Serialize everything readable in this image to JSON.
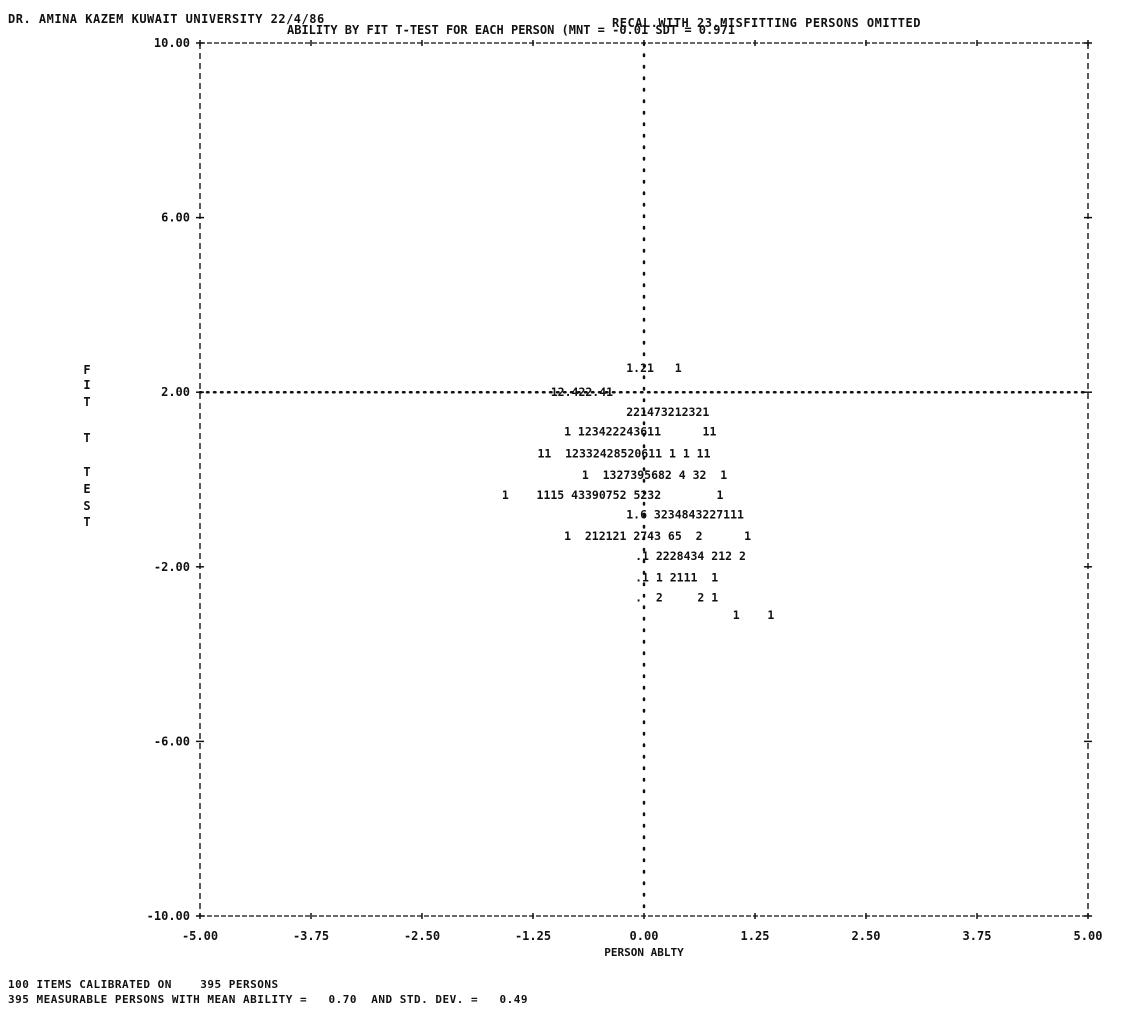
{
  "header": {
    "left": "DR. AMINA KAZEM KUWAIT UNIVERSITY 22/4/86",
    "right": "RECAL.WITH 23.MISFITTING PERSONS OMITTED"
  },
  "footer": {
    "line1": "100 ITEMS CALIBRATED ON    395 PERSONS",
    "line2": "395 MEASURABLE PERSONS WITH MEAN ABILITY =   0.70  AND STD. DEV. =   0.49"
  },
  "chart_data": {
    "type": "scatter",
    "title": "ABILITY BY FIT T-TEST FOR EACH PERSON (MNT = -0.01    SDT =  0.971",
    "xlabel": "PERSON ABLTY",
    "ylabel": "FIT T TEST",
    "ylabel_letters": [
      "F",
      "I",
      "T",
      "T",
      "T",
      "E",
      "S",
      "T"
    ],
    "xlim": [
      -5.0,
      5.0
    ],
    "ylim": [
      -10.0,
      10.0
    ],
    "x_ticks": [
      "-5.00",
      "-3.75",
      "-2.50",
      "-1.25",
      "0.00",
      "1.25",
      "2.50",
      "3.75",
      "5.00"
    ],
    "y_ticks": [
      "10.00",
      "6.00",
      "2.00",
      "-2.00",
      "-6.00",
      "-10.00"
    ],
    "reference_lines": {
      "x": 0.0,
      "y": 2.0
    },
    "count_rows": [
      {
        "y": 2.55,
        "x_start": -0.2,
        "text": "1.21   1"
      },
      {
        "y": 2.0,
        "x_start": -1.05,
        "text": "12.422.41"
      },
      {
        "y": 1.55,
        "x_start": -0.2,
        "text": "221473212321"
      },
      {
        "y": 1.1,
        "x_start": -0.9,
        "text": "1 123422243611      11"
      },
      {
        "y": 0.6,
        "x_start": -1.2,
        "text": "11  12332428520611 1 1 11"
      },
      {
        "y": 0.1,
        "x_start": -0.7,
        "text": "1  1327395682 4 32  1"
      },
      {
        "y": -0.35,
        "x_start": -1.6,
        "text": "1    1115 43390752 5232        1"
      },
      {
        "y": -0.8,
        "x_start": -0.2,
        "text": "1.6 3234843227111"
      },
      {
        "y": -1.3,
        "x_start": -0.9,
        "text": "1  212121 2743 65  2      1"
      },
      {
        "y": -1.75,
        "x_start": -0.1,
        "text": ".1 2228434 212 2"
      },
      {
        "y": -2.25,
        "x_start": -0.1,
        "text": ".1 1 2111  1"
      },
      {
        "y": -2.7,
        "x_start": -0.1,
        "text": ".  2     2 1"
      },
      {
        "y": -3.1,
        "x_start": 1.0,
        "text": "1    1"
      }
    ],
    "grid": false,
    "legend": "none"
  }
}
